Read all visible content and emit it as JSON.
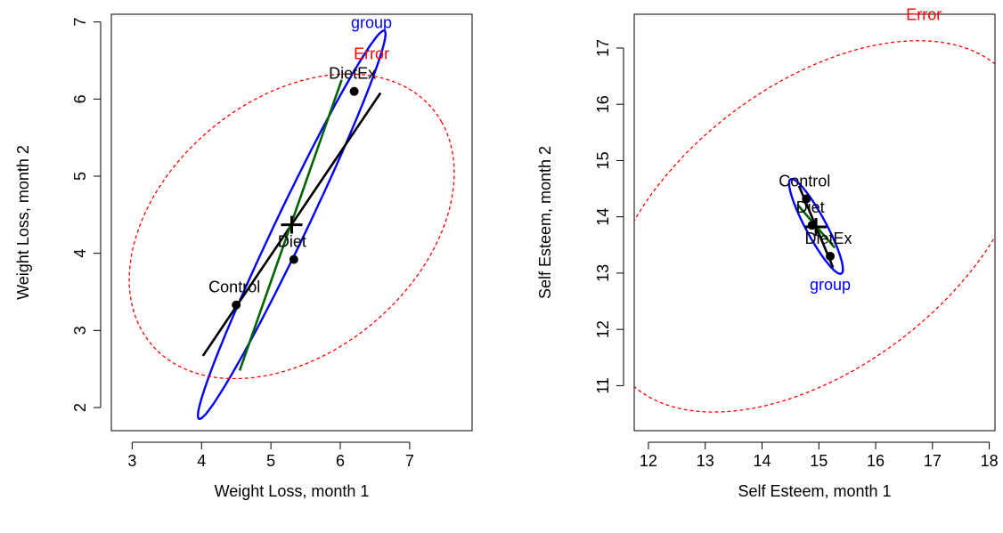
{
  "chart_data": [
    {
      "type": "scatter",
      "xlabel": "Weight Loss, month 1",
      "ylabel": "Weight Loss, month 2",
      "xlim": [
        2.7,
        7.9
      ],
      "ylim": [
        1.7,
        7.1
      ],
      "xticks": [
        3,
        4,
        5,
        6,
        7
      ],
      "yticks": [
        2,
        3,
        4,
        5,
        6,
        7
      ],
      "grid": false,
      "points": [
        {
          "label": "Control",
          "x": 4.5,
          "y": 3.33
        },
        {
          "label": "Diet",
          "x": 5.33,
          "y": 3.92
        },
        {
          "label": "DietEx",
          "x": 6.2,
          "y": 6.1
        }
      ],
      "grand_mean": {
        "x": 5.3,
        "y": 4.37
      },
      "ellipses": [
        {
          "name": "group",
          "color": "#0000ff",
          "style": "solid",
          "label_at": {
            "x": 6.45,
            "y": 6.92
          },
          "cx": 5.3,
          "cy": 4.37,
          "a": 2.85,
          "b": 0.22,
          "angle_deg": 62.0
        },
        {
          "name": "Error",
          "color": "#ff0000",
          "style": "dashed",
          "label_at": {
            "x": 6.45,
            "y": 6.52
          },
          "cx": 5.3,
          "cy": 4.35,
          "a": 2.55,
          "b": 1.7,
          "angle_deg": 32.0
        }
      ],
      "lines": [
        {
          "name": "rank1",
          "color": "#000000",
          "from": {
            "x": 4.02,
            "y": 2.67
          },
          "to": {
            "x": 6.58,
            "y": 6.08
          }
        },
        {
          "name": "rank2",
          "color": "#006400",
          "from": {
            "x": 4.55,
            "y": 2.48
          },
          "to": {
            "x": 6.02,
            "y": 6.25
          }
        }
      ]
    },
    {
      "type": "scatter",
      "xlabel": "Self Esteem, month 1",
      "ylabel": "Self Esteem, month 2",
      "xlim": [
        11.75,
        18.1
      ],
      "ylim": [
        10.2,
        17.6
      ],
      "xticks": [
        12,
        13,
        14,
        15,
        16,
        17,
        18
      ],
      "yticks": [
        11,
        12,
        13,
        14,
        15,
        16,
        17
      ],
      "grid": false,
      "points": [
        {
          "label": "Control",
          "x": 14.78,
          "y": 14.32
        },
        {
          "label": "Diet",
          "x": 14.88,
          "y": 13.85
        },
        {
          "label": "DietEx",
          "x": 15.2,
          "y": 13.3
        }
      ],
      "grand_mean": {
        "x": 14.95,
        "y": 13.82
      },
      "ellipses": [
        {
          "name": "group",
          "color": "#0000ff",
          "style": "solid",
          "label_at": {
            "x": 15.2,
            "y": 12.7
          },
          "cx": 14.95,
          "cy": 13.83,
          "a": 0.95,
          "b": 0.18,
          "angle_deg": -62.0
        },
        {
          "name": "Error",
          "color": "#ff0000",
          "style": "dashed",
          "label_at": {
            "x": 16.85,
            "y": 17.5
          },
          "cx": 14.95,
          "cy": 13.83,
          "a": 4.3,
          "b": 2.5,
          "angle_deg": 38.0
        }
      ],
      "lines": [
        {
          "name": "rank1",
          "color": "#000000",
          "from": {
            "x": 14.65,
            "y": 14.55
          },
          "to": {
            "x": 15.25,
            "y": 13.1
          }
        },
        {
          "name": "rank2",
          "color": "#006400",
          "from": {
            "x": 14.62,
            "y": 14.22
          },
          "to": {
            "x": 15.28,
            "y": 13.45
          }
        }
      ]
    }
  ]
}
